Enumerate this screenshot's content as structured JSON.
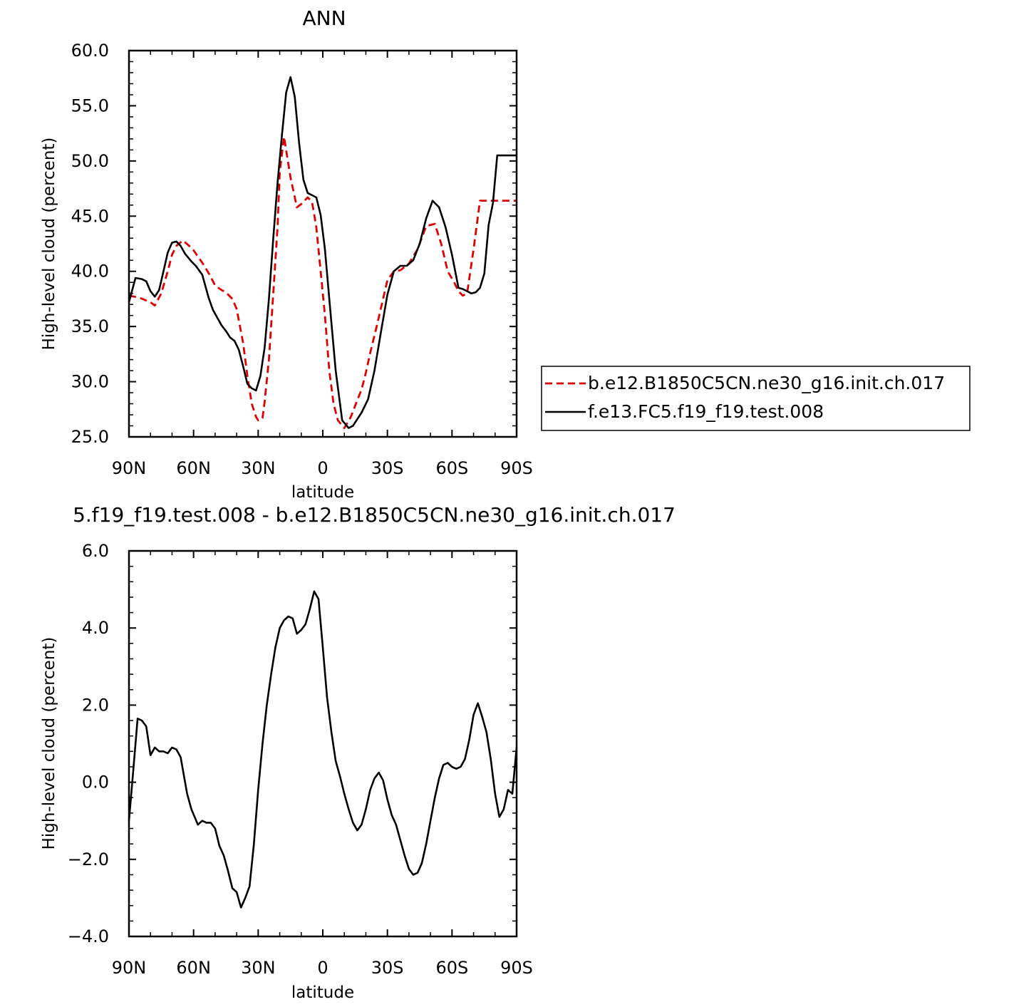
{
  "chart_data": [
    {
      "type": "line",
      "title": "ANN",
      "xlabel": "latitude",
      "ylabel": "High-level cloud (percent)",
      "xlim": [
        90,
        -90
      ],
      "ylim": [
        25,
        60
      ],
      "xticks": [
        90,
        60,
        30,
        0,
        -30,
        -60,
        -90
      ],
      "xtick_labels": [
        "90N",
        "60N",
        "30N",
        "0",
        "30S",
        "60S",
        "90S"
      ],
      "yticks": [
        25,
        30,
        35,
        40,
        45,
        50,
        55,
        60
      ],
      "ytick_labels": [
        "25.0",
        "30.0",
        "35.0",
        "40.0",
        "45.0",
        "50.0",
        "55.0",
        "60.0"
      ],
      "legend_position": "right",
      "series": [
        {
          "name": "b.e12.B1850C5CN.ne30_g16.init.ch.017",
          "color": "#e00000",
          "dash": true,
          "x": [
            90,
            85,
            80,
            78,
            75,
            72,
            70,
            68,
            65,
            62,
            60,
            55,
            52,
            50,
            47,
            45,
            42,
            40,
            37,
            35,
            33,
            31,
            30,
            28,
            27,
            25,
            23,
            21,
            20,
            18,
            15,
            12,
            10,
            7,
            5,
            3,
            1,
            -1,
            -3,
            -5,
            -7,
            -10,
            -13,
            -15,
            -18,
            -20,
            -22,
            -25,
            -28,
            -30,
            -33,
            -36,
            -40,
            -44,
            -48,
            -52,
            -55,
            -58,
            -61,
            -63,
            -65,
            -67,
            -70,
            -73,
            -76,
            -80,
            -84,
            -86,
            -88,
            -90
          ],
          "y": [
            37.8,
            37.6,
            37.2,
            36.9,
            38,
            40,
            41.5,
            42.3,
            42.8,
            42.3,
            41.9,
            40.5,
            39.5,
            38.7,
            38.3,
            38.1,
            37.5,
            36.6,
            33.5,
            30.5,
            28,
            26.8,
            26.5,
            26.7,
            28.2,
            32,
            38,
            44,
            49,
            52.2,
            48.5,
            45.8,
            46.1,
            46.7,
            46.3,
            44,
            40,
            36,
            31,
            28,
            26.5,
            25.8,
            26.8,
            27.8,
            29.3,
            30.8,
            32.6,
            35,
            37.5,
            39.2,
            40,
            40.1,
            40.7,
            42,
            44.1,
            44.3,
            42.5,
            40,
            39,
            38.2,
            37.8,
            38,
            42,
            46.4,
            46.4,
            46.4,
            46.4,
            46.4,
            46.4,
            46.4
          ]
        },
        {
          "name": "f.e13.FC5.f19_f19.test.008",
          "color": "#000000",
          "dash": false,
          "x": [
            90,
            87,
            84,
            82,
            80,
            78,
            76,
            74,
            72,
            70,
            68,
            66,
            64,
            61,
            59,
            56,
            53,
            51,
            49,
            47,
            45,
            43,
            41,
            39,
            37,
            35,
            33,
            31,
            29,
            27,
            25,
            23,
            21,
            19,
            17,
            15,
            13,
            11,
            9,
            7,
            5,
            3,
            1,
            -1,
            -3,
            -6,
            -9,
            -12,
            -14,
            -16,
            -18,
            -21,
            -24,
            -27,
            -30,
            -33,
            -36,
            -39,
            -42,
            -45,
            -48,
            -51,
            -54,
            -57,
            -60,
            -63,
            -65,
            -67,
            -69,
            -71,
            -73,
            -75,
            -77,
            -79,
            -81,
            -83,
            -85,
            -87,
            -89,
            -90
          ],
          "y": [
            37.2,
            39.4,
            39.3,
            39.1,
            38.2,
            37.7,
            38.3,
            40,
            41.7,
            42.6,
            42.7,
            42.3,
            41.6,
            40.9,
            40.5,
            39.7,
            37.6,
            36.5,
            35.8,
            35.1,
            34.6,
            34,
            33.7,
            32.9,
            31.4,
            29.8,
            29.4,
            29.2,
            30.5,
            33.1,
            37.5,
            43,
            48,
            52.3,
            56.2,
            57.6,
            55.8,
            51.6,
            48.3,
            47.1,
            46.9,
            46.7,
            45.1,
            42,
            37.5,
            31,
            26.5,
            25.8,
            26,
            26.6,
            27.2,
            28.4,
            31,
            34.5,
            37.9,
            40,
            40.5,
            40.5,
            41,
            42.5,
            44.8,
            46.4,
            45.8,
            44,
            41.5,
            38.5,
            38.4,
            38.2,
            38,
            38.1,
            38.5,
            39.8,
            44.2,
            46.2,
            50.5,
            50.5,
            50.5,
            50.5,
            50.5,
            50.5
          ]
        }
      ]
    },
    {
      "type": "line",
      "title": "5.f19_f19.test.008 - b.e12.B1850C5CN.ne30_g16.init.ch.017",
      "xlabel": "latitude",
      "ylabel": "High-level cloud (percent)",
      "xlim": [
        90,
        -90
      ],
      "ylim": [
        -4,
        6
      ],
      "xticks": [
        90,
        60,
        30,
        0,
        -30,
        -60,
        -90
      ],
      "xtick_labels": [
        "90N",
        "60N",
        "30N",
        "0",
        "30S",
        "60S",
        "90S"
      ],
      "yticks": [
        -4,
        -2,
        0,
        2,
        4,
        6
      ],
      "ytick_labels": [
        "-4.0",
        "-2.0",
        "0.0",
        "2.0",
        "4.0",
        "6.0"
      ],
      "series": [
        {
          "color": "#000000",
          "dash": false,
          "x": [
            90,
            88,
            86,
            84,
            82,
            80,
            78,
            76,
            74,
            72,
            70,
            68,
            66,
            63,
            61,
            58,
            56,
            54,
            52,
            50,
            48,
            46,
            44,
            42,
            40,
            38,
            36,
            34,
            32,
            30,
            28,
            26,
            24,
            22,
            20,
            18,
            16,
            14,
            12,
            10,
            8,
            6,
            4,
            2,
            0,
            -2,
            -4,
            -6,
            -8,
            -10,
            -12,
            -14,
            -16,
            -18,
            -20,
            -22,
            -24,
            -26,
            -28,
            -30,
            -32,
            -34,
            -36,
            -38,
            -40,
            -42,
            -44,
            -46,
            -48,
            -50,
            -52,
            -54,
            -56,
            -58,
            -60,
            -62,
            -64,
            -66,
            -68,
            -70,
            -72,
            -74,
            -76,
            -78,
            -80,
            -82,
            -84,
            -86,
            -88,
            -90
          ],
          "y": [
            -1,
            0.3,
            1.65,
            1.6,
            1.45,
            0.7,
            0.9,
            0.8,
            0.8,
            0.75,
            0.9,
            0.85,
            0.65,
            -0.3,
            -0.7,
            -1.1,
            -1,
            -1.05,
            -1.05,
            -1.2,
            -1.65,
            -1.9,
            -2.3,
            -2.75,
            -2.85,
            -3.25,
            -3,
            -2.7,
            -1.6,
            -0.2,
            1,
            2,
            2.8,
            3.5,
            4,
            4.2,
            4.3,
            4.25,
            3.85,
            3.95,
            4.1,
            4.5,
            4.95,
            4.75,
            3.5,
            2.2,
            1.3,
            0.55,
            0.15,
            -0.3,
            -0.7,
            -1.05,
            -1.25,
            -1.1,
            -0.7,
            -0.2,
            0.1,
            0.25,
            0.05,
            -0.45,
            -0.85,
            -1.1,
            -1.5,
            -1.9,
            -2.25,
            -2.4,
            -2.35,
            -2.1,
            -1.6,
            -1,
            -0.4,
            0.1,
            0.45,
            0.5,
            0.4,
            0.35,
            0.4,
            0.6,
            1.1,
            1.75,
            2.05,
            1.7,
            1.3,
            0.6,
            -0.3,
            -0.9,
            -0.7,
            -0.2,
            -0.3,
            0.9
          ]
        }
      ]
    }
  ]
}
